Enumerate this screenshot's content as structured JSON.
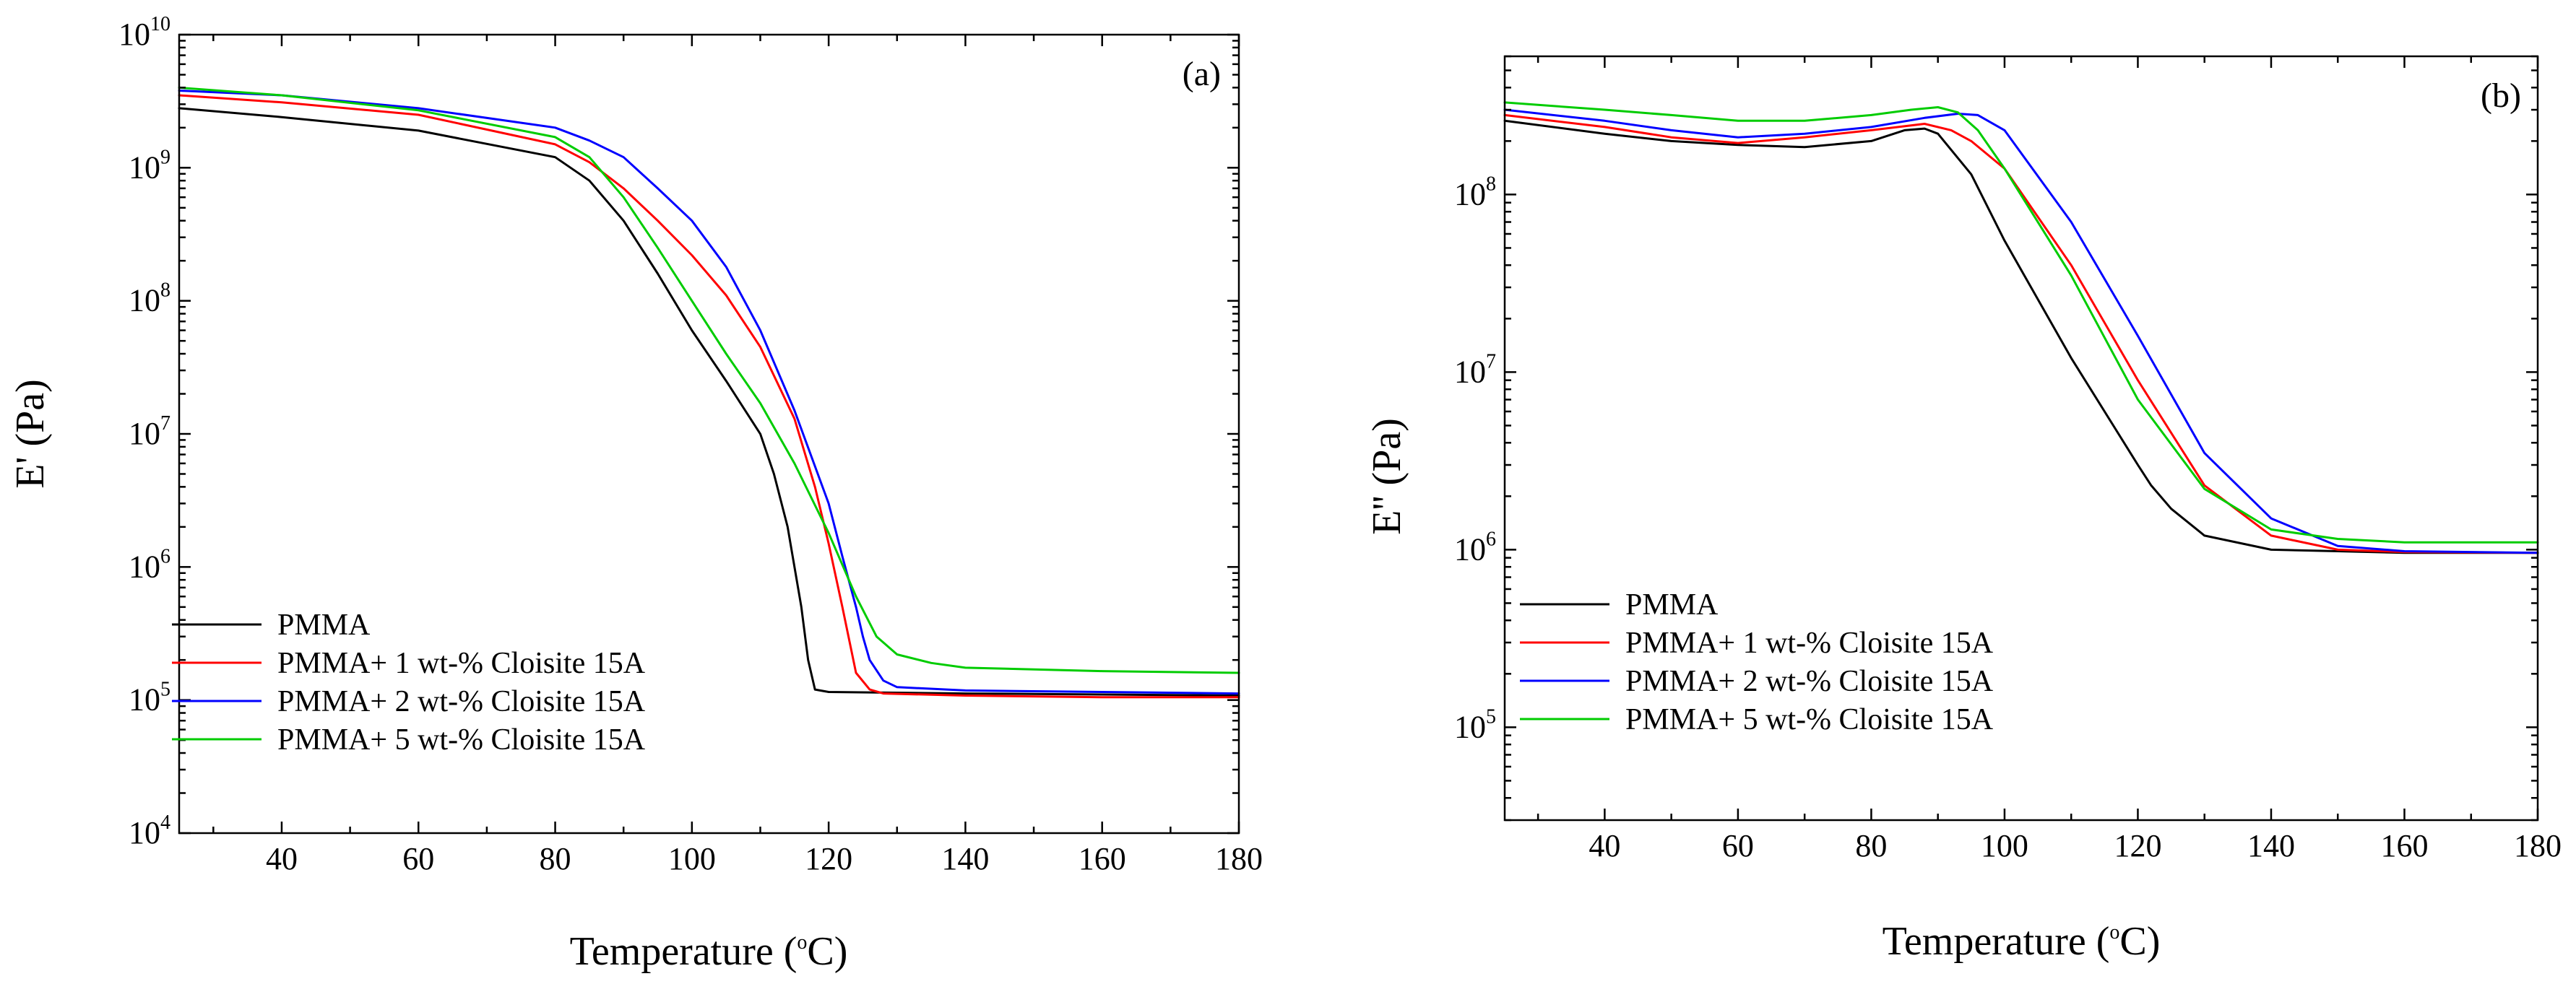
{
  "chart_data": [
    {
      "type": "line",
      "panel_label": "(a)",
      "xlabel": "Temperature (°C)",
      "ylabel": "E' (Pa)",
      "yscale": "log",
      "xlim": [
        25,
        180
      ],
      "ylim": [
        10000,
        10000000000
      ],
      "xticks": [
        40,
        60,
        80,
        100,
        120,
        140,
        160,
        180
      ],
      "yticks": [
        4,
        5,
        6,
        7,
        8,
        9,
        10
      ],
      "legend_position": "bottom-left",
      "series": [
        {
          "name": "PMMA",
          "color": "#000000",
          "x": [
            25,
            40,
            60,
            80,
            85,
            90,
            95,
            100,
            105,
            110,
            112,
            114,
            115,
            116,
            117,
            118,
            120,
            140,
            160,
            180
          ],
          "y": [
            2800000000.0,
            2400000000.0,
            1900000000.0,
            1200000000.0,
            800000000.0,
            400000000.0,
            160000000.0,
            60000000.0,
            25000000.0,
            10000000.0,
            5000000.0,
            2000000.0,
            1000000.0,
            500000.0,
            200000.0,
            120000.0,
            115000.0,
            112000.0,
            110000.0,
            108000.0
          ]
        },
        {
          "name": "PMMA+ 1 wt-% Cloisite 15A",
          "color": "#ff0000",
          "x": [
            25,
            40,
            60,
            80,
            85,
            90,
            95,
            100,
            105,
            110,
            115,
            118,
            120,
            122,
            124,
            126,
            128,
            140,
            160,
            180
          ],
          "y": [
            3500000000.0,
            3100000000.0,
            2500000000.0,
            1500000000.0,
            1100000000.0,
            700000000.0,
            400000000.0,
            220000000.0,
            110000000.0,
            45000000.0,
            13000000.0,
            4000000.0,
            1500000.0,
            500000.0,
            160000.0,
            120000.0,
            112000.0,
            108000.0,
            105000.0,
            105000.0
          ]
        },
        {
          "name": "PMMA+ 2 wt-% Cloisite 15A",
          "color": "#0000ff",
          "x": [
            25,
            40,
            60,
            80,
            85,
            90,
            95,
            100,
            105,
            110,
            115,
            120,
            122,
            124,
            125,
            126,
            128,
            130,
            140,
            160,
            180
          ],
          "y": [
            3800000000.0,
            3500000000.0,
            2800000000.0,
            2000000000.0,
            1600000000.0,
            1200000000.0,
            700000000.0,
            400000000.0,
            180000000.0,
            60000000.0,
            15000000.0,
            3000000.0,
            1200000.0,
            500000.0,
            300000.0,
            200000.0,
            140000.0,
            125000.0,
            118000.0,
            115000.0,
            112000.0
          ]
        },
        {
          "name": "PMMA+ 5 wt-% Cloisite 15A",
          "color": "#00cc00",
          "x": [
            25,
            40,
            60,
            80,
            85,
            90,
            95,
            100,
            105,
            110,
            115,
            120,
            124,
            127,
            130,
            135,
            140,
            160,
            180
          ],
          "y": [
            4000000000.0,
            3500000000.0,
            2700000000.0,
            1700000000.0,
            1200000000.0,
            600000000.0,
            250000000.0,
            100000000.0,
            40000000.0,
            17000000.0,
            6000000.0,
            1800000.0,
            600000.0,
            300000.0,
            220000.0,
            190000.0,
            175000.0,
            165000.0,
            160000.0
          ]
        }
      ]
    },
    {
      "type": "line",
      "panel_label": "(b)",
      "xlabel": "Temperature (°C)",
      "ylabel": "E'' (Pa)",
      "yscale": "log",
      "xlim": [
        25,
        180
      ],
      "ylim": [
        30000,
        600000000
      ],
      "xticks": [
        40,
        60,
        80,
        100,
        120,
        140,
        160,
        180
      ],
      "yticks": [
        5,
        6,
        7,
        8
      ],
      "legend_position": "bottom-left",
      "series": [
        {
          "name": "PMMA",
          "color": "#000000",
          "x": [
            25,
            40,
            50,
            60,
            70,
            80,
            85,
            88,
            90,
            95,
            100,
            110,
            120,
            122,
            125,
            130,
            140,
            150,
            160,
            180
          ],
          "y": [
            260000000.0,
            220000000.0,
            200000000.0,
            190000000.0,
            185000000.0,
            200000000.0,
            230000000.0,
            235000000.0,
            220000000.0,
            130000000.0,
            55000000.0,
            12000000.0,
            3000000.0,
            2300000.0,
            1700000.0,
            1200000.0,
            1000000.0,
            980000.0,
            960000.0,
            960000.0
          ]
        },
        {
          "name": "PMMA+ 1 wt-% Cloisite 15A",
          "color": "#ff0000",
          "x": [
            25,
            40,
            50,
            60,
            70,
            80,
            88,
            92,
            95,
            100,
            110,
            120,
            130,
            140,
            150,
            160,
            180
          ],
          "y": [
            280000000.0,
            240000000.0,
            210000000.0,
            195000000.0,
            210000000.0,
            230000000.0,
            250000000.0,
            230000000.0,
            200000000.0,
            140000000.0,
            40000000.0,
            9000000.0,
            2300000.0,
            1200000.0,
            1000000.0,
            970000.0,
            960000.0
          ]
        },
        {
          "name": "PMMA+ 2 wt-% Cloisite 15A",
          "color": "#0000ff",
          "x": [
            25,
            40,
            50,
            60,
            70,
            80,
            88,
            93,
            96,
            100,
            110,
            120,
            130,
            140,
            150,
            160,
            180
          ],
          "y": [
            300000000.0,
            260000000.0,
            230000000.0,
            210000000.0,
            220000000.0,
            240000000.0,
            270000000.0,
            285000000.0,
            280000000.0,
            230000000.0,
            70000000.0,
            16000000.0,
            3500000.0,
            1500000.0,
            1050000.0,
            980000.0,
            960000.0
          ]
        },
        {
          "name": "PMMA+ 5 wt-% Cloisite 15A",
          "color": "#00cc00",
          "x": [
            25,
            40,
            50,
            60,
            70,
            80,
            86,
            90,
            93,
            96,
            100,
            110,
            120,
            130,
            140,
            150,
            160,
            180
          ],
          "y": [
            330000000.0,
            300000000.0,
            280000000.0,
            260000000.0,
            260000000.0,
            280000000.0,
            300000000.0,
            310000000.0,
            290000000.0,
            230000000.0,
            140000000.0,
            35000000.0,
            7000000.0,
            2200000.0,
            1300000.0,
            1150000.0,
            1100000.0,
            1100000.0
          ]
        }
      ]
    }
  ]
}
